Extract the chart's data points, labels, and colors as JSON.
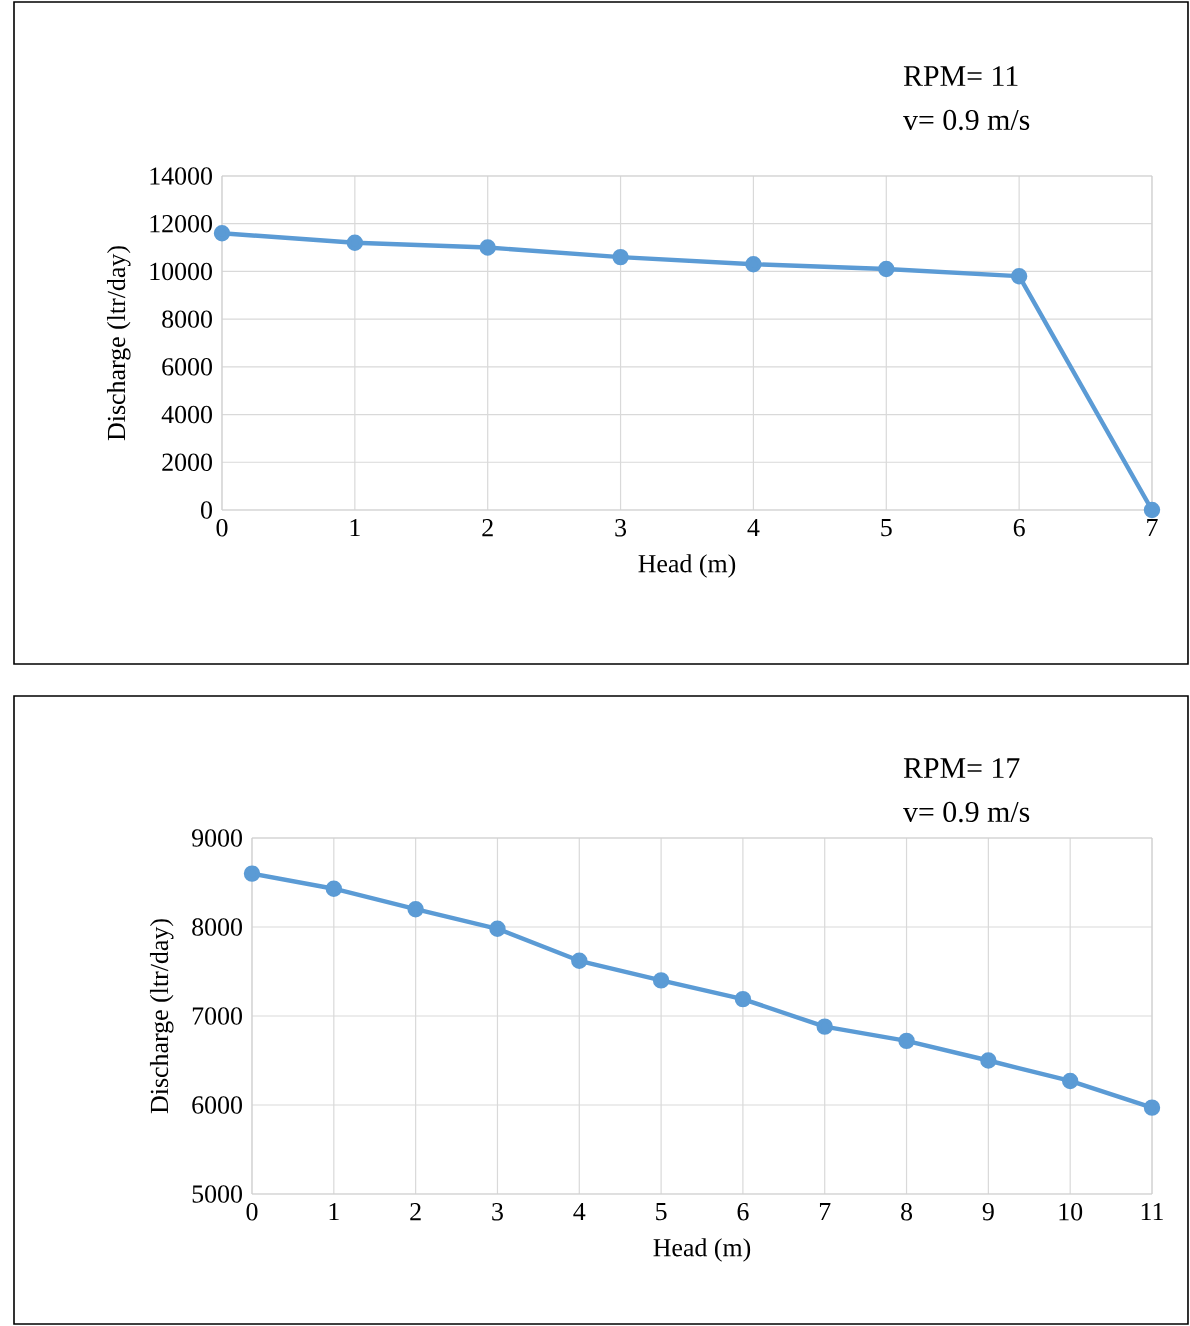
{
  "chart_data": [
    {
      "type": "line",
      "annotations": [
        "RPM= 11",
        "v= 0.9 m/s"
      ],
      "xlabel": "Head (m)",
      "ylabel": "Discharge (ltr/day)",
      "x": [
        0,
        1,
        2,
        3,
        4,
        5,
        6,
        7
      ],
      "series": [
        {
          "color": "#5b9bd5",
          "values": [
            11600,
            11200,
            11000,
            10600,
            10300,
            10100,
            9800,
            0
          ]
        }
      ],
      "xlim": [
        0,
        7
      ],
      "xticks": [
        0,
        1,
        2,
        3,
        4,
        5,
        6,
        7
      ],
      "ylim": [
        0,
        14000
      ],
      "yticks": [
        0,
        2000,
        4000,
        6000,
        8000,
        10000,
        12000,
        14000
      ],
      "grid": true,
      "marker": "circle",
      "line_style": "solid"
    },
    {
      "type": "line",
      "annotations": [
        "RPM= 17",
        "v= 0.9 m/s"
      ],
      "xlabel": "Head (m)",
      "ylabel": "Discharge (ltr/day)",
      "x": [
        0,
        1,
        2,
        3,
        4,
        5,
        6,
        7,
        8,
        9,
        10,
        11
      ],
      "series": [
        {
          "color": "#5b9bd5",
          "values": [
            8600,
            8430,
            8200,
            7980,
            7620,
            7400,
            7190,
            6880,
            6720,
            6500,
            6270,
            5970
          ]
        }
      ],
      "xlim": [
        0,
        11
      ],
      "xticks": [
        0,
        1,
        2,
        3,
        4,
        5,
        6,
        7,
        8,
        9,
        10,
        11
      ],
      "ylim": [
        5000,
        9000
      ],
      "yticks": [
        5000,
        6000,
        7000,
        8000,
        9000
      ],
      "grid": true,
      "marker": "circle",
      "line_style": "solid"
    }
  ]
}
